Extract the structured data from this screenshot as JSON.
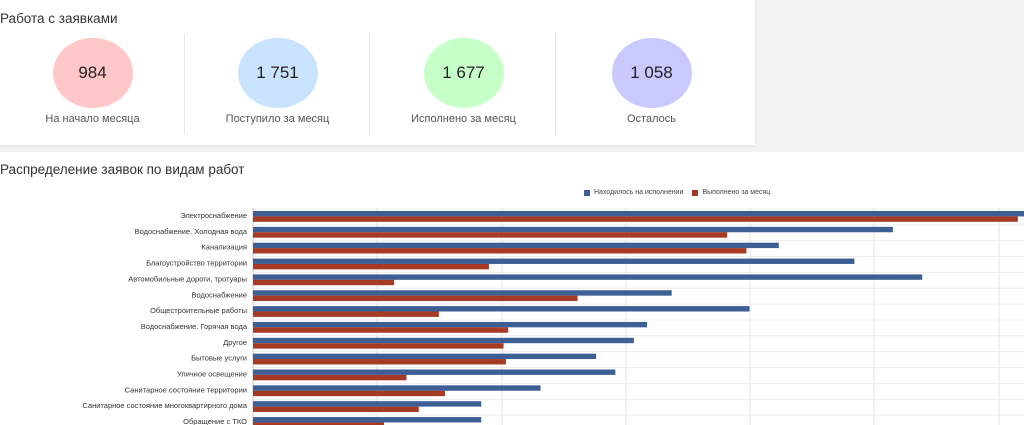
{
  "requests_panel": {
    "title": "Работа с заявками",
    "stats": [
      {
        "value": "984",
        "label": "На начало месяца",
        "color": "#ffc7c7"
      },
      {
        "value": "1 751",
        "label": "Поступило за месяц",
        "color": "#c9e3ff"
      },
      {
        "value": "1 677",
        "label": "Исполнено за месяц",
        "color": "#c7ffc9"
      },
      {
        "value": "1 058",
        "label": "Осталось",
        "color": "#c9c9ff"
      }
    ]
  },
  "distribution_panel": {
    "title": "Распределение заявок по видам работ",
    "legend": {
      "in_progress": "Находилось на исполнении",
      "done": "Выполнено за месяц"
    }
  },
  "colors": {
    "in_progress": "#3d5f94",
    "done": "#a53a25",
    "grid": "#e4e4e4"
  },
  "chart_data": {
    "type": "bar",
    "orientation": "horizontal",
    "categories": [
      "Электроснабжение",
      "Водоснабжение. Холодная вода",
      "Канализация",
      "Благоустройство территории",
      "Автомобильные дороги, тротуары",
      "Водоснабжение",
      "Общестроительные работы",
      "Водоснабжение. Горячая вода",
      "Другое",
      "Бытовые услуги",
      "Уличное освещение",
      "Санитарное состояние территории",
      "Санитарное состояние многоквартирного дома",
      "Обращение с ТКО"
    ],
    "series": [
      {
        "name": "Находилось на исполнении",
        "values": [
          1000,
          830,
          682,
          780,
          868,
          543,
          644,
          511,
          494,
          445,
          470,
          373,
          296,
          296
        ]
      },
      {
        "name": "Выполнено за месяц",
        "values": [
          992,
          615,
          640,
          306,
          183,
          421,
          241,
          331,
          325,
          328,
          199,
          249,
          215,
          170
        ]
      }
    ],
    "xlim": [
      0,
      1000
    ],
    "grid": true,
    "legend_position": "top"
  }
}
